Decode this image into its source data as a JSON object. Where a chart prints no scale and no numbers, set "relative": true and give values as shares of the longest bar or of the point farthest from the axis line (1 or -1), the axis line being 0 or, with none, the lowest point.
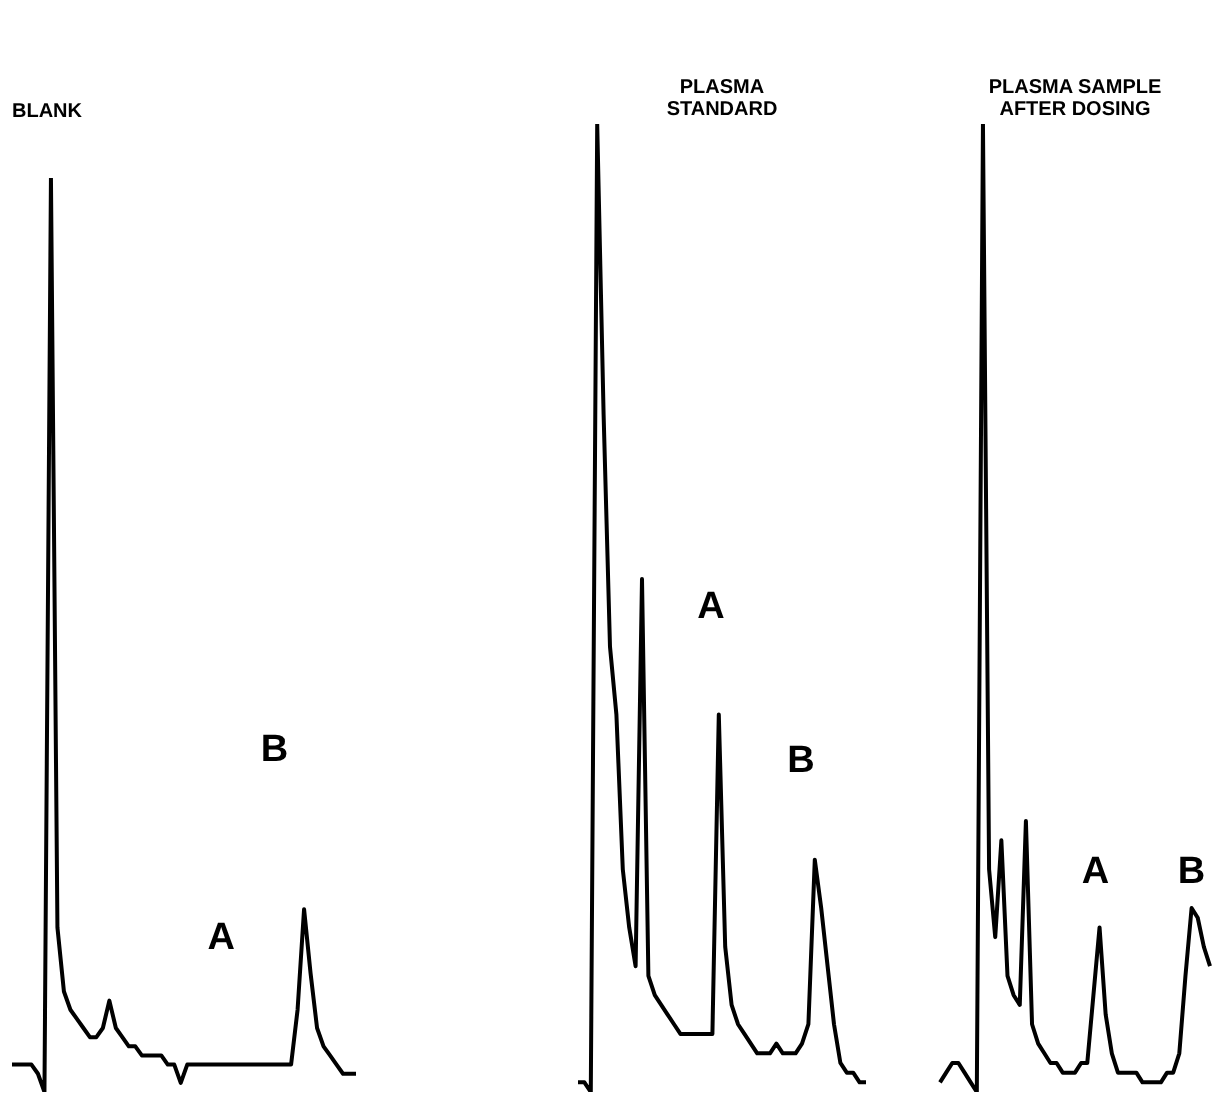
{
  "chart_data": [
    {
      "type": "line",
      "title": "BLANK",
      "relative": true,
      "color": "#000000",
      "annotations": [
        "A",
        "B"
      ],
      "categories": [
        null,
        null,
        null,
        null,
        null,
        null,
        null,
        null,
        null,
        null,
        null,
        null,
        null,
        null,
        null,
        null,
        null,
        null,
        null,
        null,
        null,
        null,
        null,
        null,
        null,
        null,
        null,
        null,
        null,
        null,
        null,
        null,
        null,
        null,
        null,
        null,
        null,
        null,
        null,
        null,
        null,
        null,
        null,
        null,
        null,
        null,
        null,
        null,
        null,
        null,
        null,
        null,
        null,
        null
      ],
      "values": [
        0.03,
        0.03,
        0.03,
        0.03,
        0.02,
        0,
        1,
        0.18,
        0.11,
        0.09,
        0.08,
        0.07,
        0.06,
        0.06,
        0.07,
        0.1,
        0.07,
        0.06,
        0.05,
        0.05,
        0.04,
        0.04,
        0.04,
        0.04,
        0.03,
        0.03,
        0.01,
        0.03,
        0.03,
        0.03,
        0.03,
        0.03,
        0.03,
        0.03,
        0.03,
        0.03,
        0.03,
        0.03,
        0.03,
        0.03,
        0.03,
        0.03,
        0.03,
        0.03,
        0.09,
        0.2,
        0.13,
        0.07,
        0.05,
        0.04,
        0.03,
        0.02,
        0.02,
        0.02
      ]
    },
    {
      "type": "line",
      "title": "PLASMA\nSTANDARD",
      "relative": true,
      "color": "#000000",
      "annotations": [
        "A",
        "B"
      ],
      "categories": [
        null,
        null,
        null,
        null,
        null,
        null,
        null,
        null,
        null,
        null,
        null,
        null,
        null,
        null,
        null,
        null,
        null,
        null,
        null,
        null,
        null,
        null,
        null,
        null,
        null,
        null,
        null,
        null,
        null,
        null,
        null,
        null,
        null,
        null,
        null,
        null,
        null,
        null,
        null,
        null,
        null,
        null,
        null,
        null,
        null,
        null
      ],
      "values": [
        0.01,
        0.01,
        0,
        1,
        0.7,
        0.46,
        0.39,
        0.23,
        0.17,
        0.13,
        0.53,
        0.12,
        0.1,
        0.09,
        0.08,
        0.07,
        0.06,
        0.06,
        0.06,
        0.06,
        0.06,
        0.06,
        0.39,
        0.15,
        0.09,
        0.07,
        0.06,
        0.05,
        0.04,
        0.04,
        0.04,
        0.05,
        0.04,
        0.04,
        0.04,
        0.05,
        0.07,
        0.24,
        0.19,
        0.13,
        0.07,
        0.03,
        0.02,
        0.02,
        0.01,
        0.01
      ]
    },
    {
      "type": "line",
      "title": "PLASMA SAMPLE\nAFTER DOSING",
      "relative": true,
      "color": "#000000",
      "annotations": [
        "A",
        "B"
      ],
      "categories": [
        null,
        null,
        null,
        null,
        null,
        null,
        null,
        null,
        null,
        null,
        null,
        null,
        null,
        null,
        null,
        null,
        null,
        null,
        null,
        null,
        null,
        null,
        null,
        null,
        null,
        null,
        null,
        null,
        null,
        null,
        null,
        null,
        null,
        null,
        null,
        null,
        null,
        null,
        null,
        null,
        null,
        null,
        null,
        null,
        null
      ],
      "values": [
        0.01,
        0.02,
        0.03,
        0.03,
        0.02,
        0.01,
        0,
        1,
        0.23,
        0.16,
        0.26,
        0.12,
        0.1,
        0.09,
        0.28,
        0.07,
        0.05,
        0.04,
        0.03,
        0.03,
        0.02,
        0.02,
        0.02,
        0.03,
        0.03,
        0.1,
        0.17,
        0.08,
        0.04,
        0.02,
        0.02,
        0.02,
        0.02,
        0.01,
        0.01,
        0.01,
        0.01,
        0.02,
        0.02,
        0.04,
        0.12,
        0.19,
        0.18,
        0.15,
        0.13
      ]
    }
  ]
}
